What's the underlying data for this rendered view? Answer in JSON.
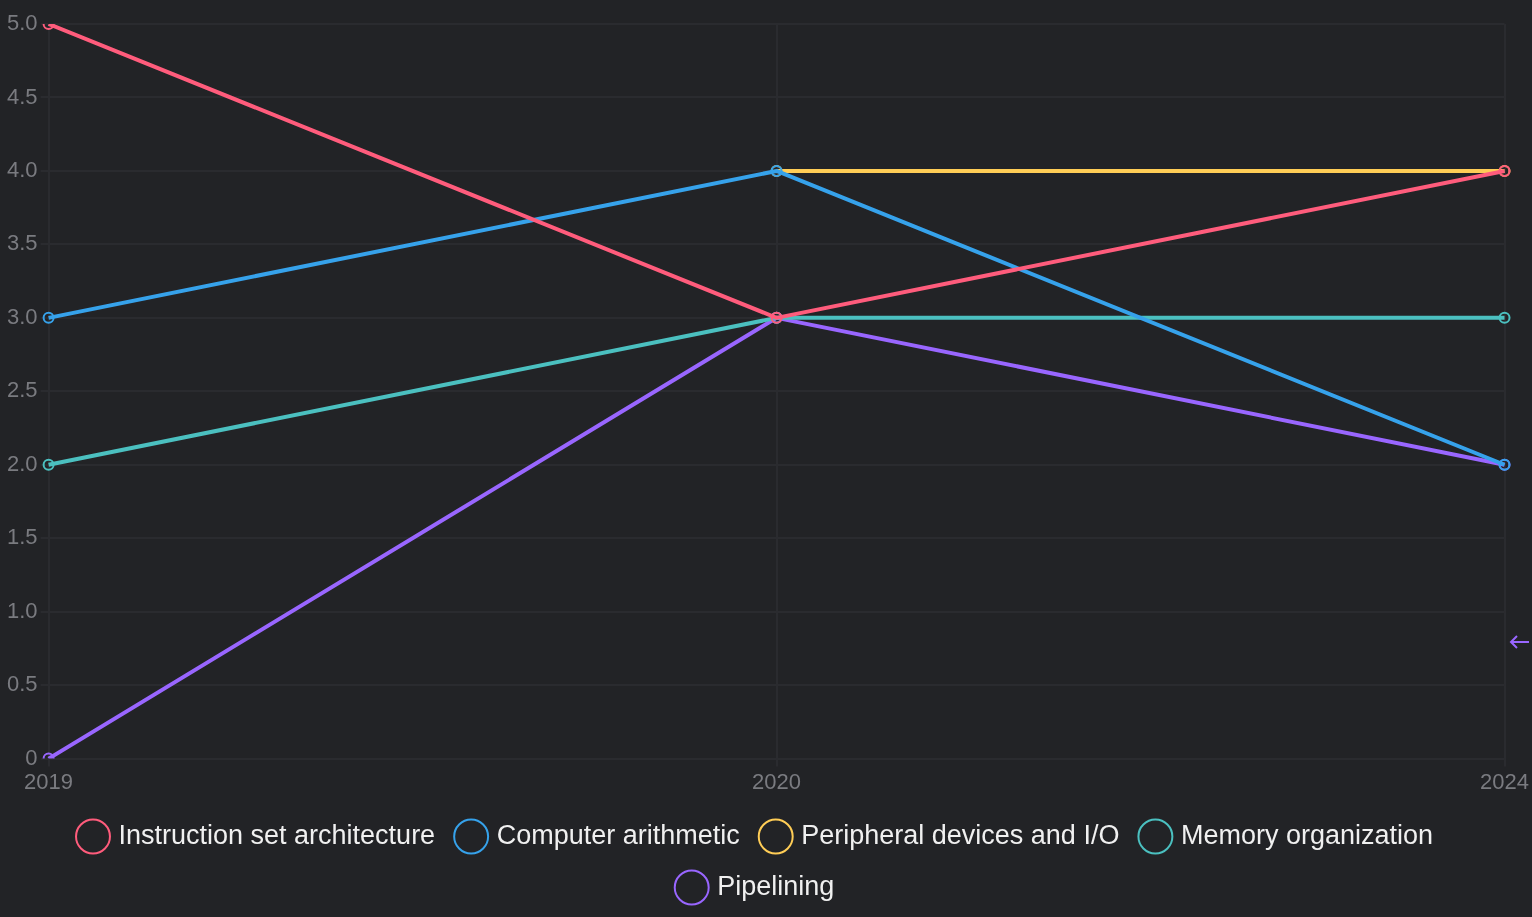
{
  "chart_data": {
    "type": "line",
    "categories": [
      "2019",
      "2020",
      "2024"
    ],
    "series": [
      {
        "name": "Instruction set architecture",
        "color": "#ff5c7c",
        "values": [
          5,
          3,
          4
        ]
      },
      {
        "name": "Computer arithmetic",
        "color": "#36a2eb",
        "values": [
          3,
          4,
          2
        ]
      },
      {
        "name": "Peripheral devices and I/O",
        "color": "#ffcd56",
        "values": [
          null,
          4,
          4
        ]
      },
      {
        "name": "Memory organization",
        "color": "#4bc0c0",
        "values": [
          2,
          3,
          3
        ]
      },
      {
        "name": "Pipelining",
        "color": "#9966ff",
        "values": [
          0,
          3,
          2
        ]
      }
    ],
    "ylim": [
      0,
      5
    ],
    "yticks": [
      {
        "value": 0,
        "label": "0"
      },
      {
        "value": 0.5,
        "label": "0.5"
      },
      {
        "value": 1,
        "label": "1.0"
      },
      {
        "value": 1.5,
        "label": "1.5"
      },
      {
        "value": 2,
        "label": "2.0"
      },
      {
        "value": 2.5,
        "label": "2.5"
      },
      {
        "value": 3,
        "label": "3.0"
      },
      {
        "value": 3.5,
        "label": "3.5"
      },
      {
        "value": 4,
        "label": "4.0"
      },
      {
        "value": 4.5,
        "label": "4.5"
      },
      {
        "value": 5,
        "label": "5.0"
      }
    ],
    "grid": true,
    "legend": "bottom",
    "marker": "circle",
    "line_style": "solid"
  }
}
